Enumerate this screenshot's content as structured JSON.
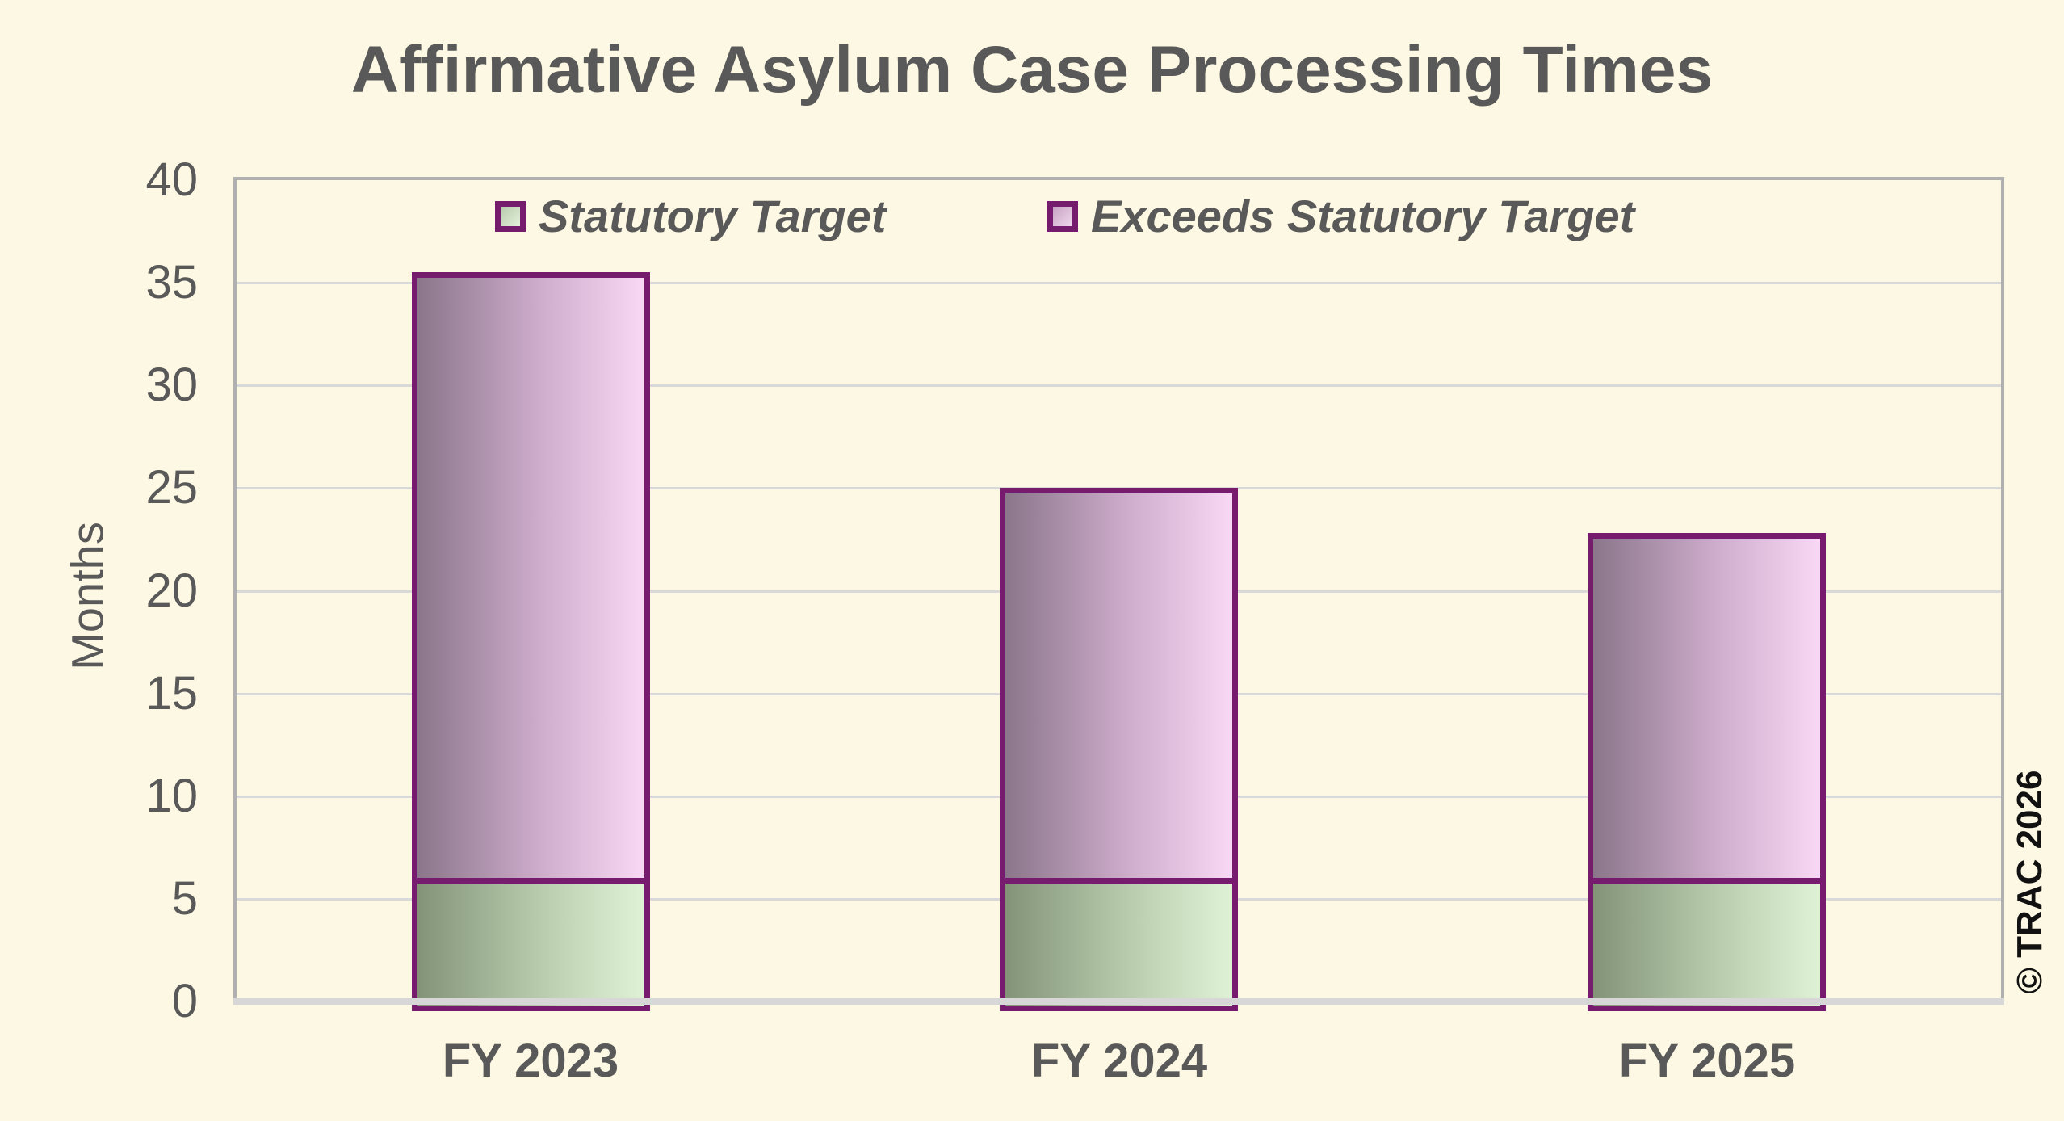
{
  "title": "Affirmative Asylum Case Processing Times",
  "watermark": "© TRAC 2026",
  "colors": {
    "background": "#fdf8e3",
    "text": "#595959",
    "frame": "#b0b0b0",
    "gridline": "#d9d9d9",
    "axis_baseline": "#d7d7d7",
    "bar_border": "#771b6f",
    "statutory_fill_dark": "#839378",
    "statutory_fill_mid": "#b9cdae",
    "statutory_fill_light": "#e0f2d6",
    "exceeds_fill_dark": "#8a768a",
    "exceeds_fill_mid": "#cfadcd",
    "exceeds_fill_light": "#f8d8f5",
    "watermark_text": "#111111"
  },
  "chart_data": {
    "type": "bar",
    "stacked": true,
    "title": "Affirmative Asylum Case Processing Times",
    "categories": [
      "FY 2023",
      "FY 2024",
      "FY 2025"
    ],
    "series": [
      {
        "name": "Statutory Target",
        "values": [
          6,
          6,
          6
        ]
      },
      {
        "name": "Exceeds Statutory Target",
        "values": [
          29.5,
          19,
          16.8
        ]
      }
    ],
    "totals": [
      35.5,
      25,
      22.8
    ],
    "unit": "months",
    "xlabel": "",
    "ylabel": "Months",
    "ylim": [
      0,
      40
    ],
    "yticks": [
      0,
      5,
      10,
      15,
      20,
      25,
      30,
      35,
      40
    ],
    "grid": true,
    "legend_position": "top-inside"
  }
}
